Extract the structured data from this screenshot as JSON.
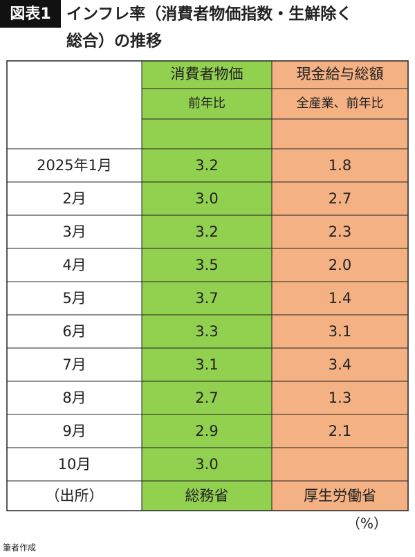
{
  "title": {
    "badge": "図表1",
    "lines": [
      "インフレ率（消費者物価指数・生鮮除く",
      "総合）の推移"
    ]
  },
  "table": {
    "header": {
      "cpi": [
        "消費者物価",
        "前年比"
      ],
      "wage": [
        "現金給与総額",
        "全産業、前年比"
      ]
    },
    "rows": [
      {
        "label": "2025年1月",
        "cpi": "3.2",
        "wage": "1.8"
      },
      {
        "label": "2月",
        "cpi": "3.0",
        "wage": "2.7"
      },
      {
        "label": "3月",
        "cpi": "3.2",
        "wage": "2.3"
      },
      {
        "label": "4月",
        "cpi": "3.5",
        "wage": "2.0"
      },
      {
        "label": "5月",
        "cpi": "3.7",
        "wage": "1.4"
      },
      {
        "label": "6月",
        "cpi": "3.3",
        "wage": "3.1"
      },
      {
        "label": "7月",
        "cpi": "3.1",
        "wage": "3.4"
      },
      {
        "label": "8月",
        "cpi": "2.7",
        "wage": "1.3"
      },
      {
        "label": "9月",
        "cpi": "2.9",
        "wage": "2.1"
      },
      {
        "label": "10月",
        "cpi": "3.0",
        "wage": null
      }
    ],
    "source": {
      "label": "（出所）",
      "cpi": "総務省",
      "wage": "厚生労働省"
    }
  },
  "unit": "（%）",
  "note": "筆者作成"
}
